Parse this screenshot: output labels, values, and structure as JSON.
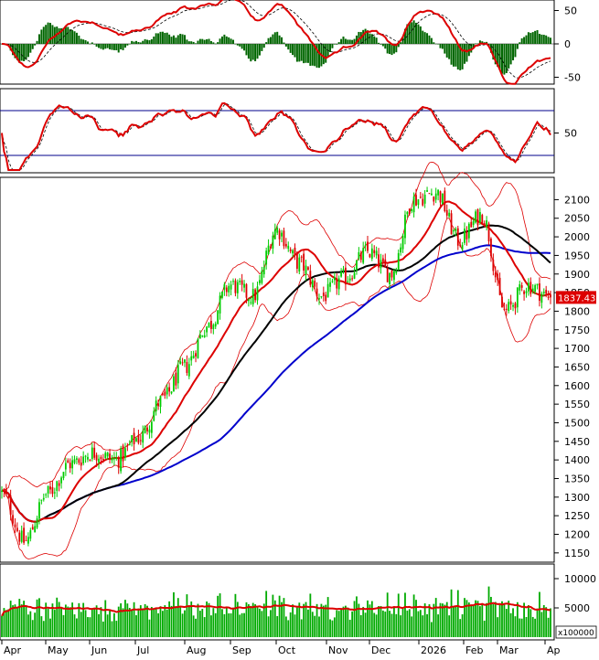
{
  "colors": {
    "background": "#ffffff",
    "frame": "#000000",
    "up_candle": "#00cc00",
    "down_candle": "#dd0000",
    "ma_black": "#000000",
    "ma_blue": "#0000cc",
    "ma_red": "#dd0000",
    "bollinger": "#dd0000",
    "indicator_line": "#dd0000",
    "signal_line": "#000000",
    "histogram": "#006600",
    "rsi_levels": "#00008b",
    "volume_bars": "#00aa00",
    "volume_ma": "#dd0000",
    "price_tag_bg": "#dd0000",
    "price_tag_text": "#ffffff"
  },
  "chart_data": {
    "type": "candlestick",
    "months": [
      "Apr",
      "May",
      "Jun",
      "Jul",
      "Aug",
      "Sep",
      "Oct",
      "Nov",
      "Dec",
      "2026",
      "Feb",
      "Mar",
      "Ap"
    ],
    "last_price_label": "1837.43",
    "close_series": [
      {
        "month": "Apr",
        "close": 1310
      },
      {
        "month": "Apr",
        "close": 1180
      },
      {
        "month": "May",
        "close": 1310
      },
      {
        "month": "May",
        "close": 1390
      },
      {
        "month": "Jun",
        "close": 1420
      },
      {
        "month": "Jun",
        "close": 1400
      },
      {
        "month": "Jul",
        "close": 1460
      },
      {
        "month": "Jul",
        "close": 1560
      },
      {
        "month": "Aug",
        "close": 1650
      },
      {
        "month": "Aug",
        "close": 1760
      },
      {
        "month": "Sep",
        "close": 1870
      },
      {
        "month": "Sep",
        "close": 1840
      },
      {
        "month": "Oct",
        "close": 2020
      },
      {
        "month": "Oct",
        "close": 1930
      },
      {
        "month": "Nov",
        "close": 1840
      },
      {
        "month": "Nov",
        "close": 1890
      },
      {
        "month": "Dec",
        "close": 1960
      },
      {
        "month": "Dec",
        "close": 1900
      },
      {
        "month": "2026",
        "close": 2100
      },
      {
        "month": "2026",
        "close": 2120
      },
      {
        "month": "Feb",
        "close": 1990
      },
      {
        "month": "Feb",
        "close": 2060
      },
      {
        "month": "Mar",
        "close": 1800
      },
      {
        "month": "Mar",
        "close": 1870
      },
      {
        "month": "Ap",
        "close": 1837
      }
    ],
    "price_axis": {
      "ticks": [
        1150,
        1200,
        1250,
        1300,
        1350,
        1400,
        1450,
        1500,
        1550,
        1600,
        1650,
        1700,
        1750,
        1800,
        1850,
        1900,
        1950,
        2000,
        2050,
        2100
      ],
      "range": [
        1125,
        2160
      ]
    },
    "macd_axis": {
      "ticks": [
        50,
        0,
        -50
      ]
    },
    "rsi_axis": {
      "ticks": [
        50
      ]
    },
    "volume_axis": {
      "ticks": [
        10000,
        5000
      ],
      "multiplier_label": "x100000"
    },
    "grid": false
  }
}
